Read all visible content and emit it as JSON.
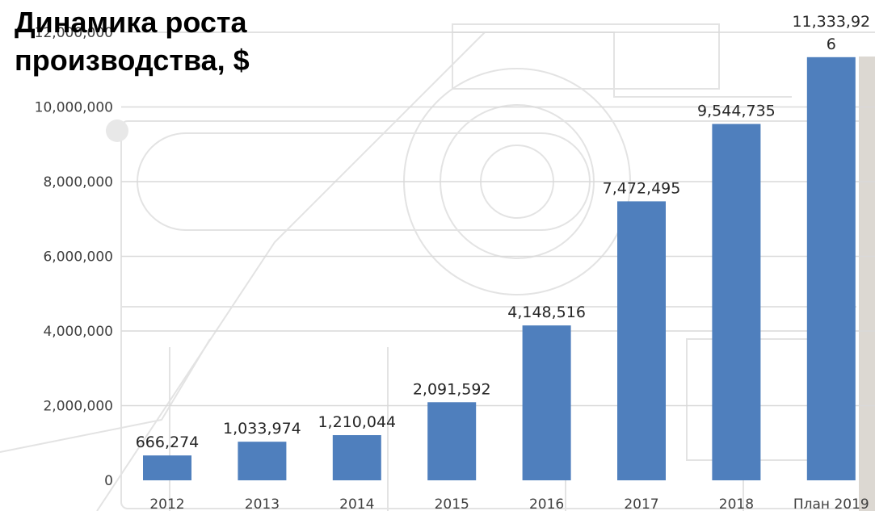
{
  "chart_data": {
    "type": "bar",
    "title": "Динамика роста производства, $",
    "categories": [
      "2012",
      "2013",
      "2014",
      "2015",
      "2016",
      "2017",
      "2018",
      "План 2019"
    ],
    "values": [
      666274,
      1033974,
      1210044,
      2091592,
      4148516,
      7472495,
      9544735,
      11333926
    ],
    "data_labels": [
      "666,274",
      "1,033,974",
      "1,210,044",
      "2,091,592",
      "4,148,516",
      "7,472,495",
      "9,544,735",
      "11,333,926"
    ],
    "yticks": [
      0,
      2000000,
      4000000,
      6000000,
      8000000,
      10000000,
      12000000
    ],
    "ytick_labels": [
      "0",
      "2,000,000",
      "4,000,000",
      "6,000,000",
      "8,000,000",
      "10,000,000",
      "12,000,000"
    ],
    "ylim": [
      0,
      12000000
    ],
    "xlabel": "",
    "ylabel": "",
    "grid": true,
    "bar_color": "#4f7fbd",
    "grid_color": "#d9d9d9",
    "legend": "none"
  }
}
